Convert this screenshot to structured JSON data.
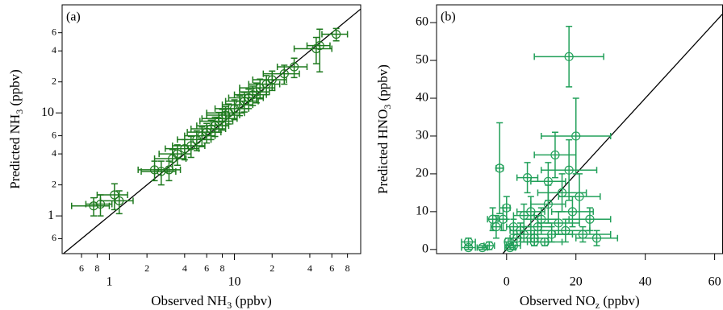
{
  "chart_data": [
    {
      "type": "scatter",
      "panel_label": "(a)",
      "x_label": [
        "Observed NH",
        "3",
        " (ppbv)"
      ],
      "y_label": [
        "Predicted NH",
        "3",
        " (ppbv)"
      ],
      "xscale": "log",
      "yscale": "log",
      "color": "#1f7a1f",
      "identity_line": true,
      "xlim": [
        0.42,
        102
      ],
      "ylim": [
        0.43,
        112
      ],
      "xticks": [
        {
          "value": 0.6,
          "label": "6"
        },
        {
          "value": 0.8,
          "label": "8"
        },
        1,
        {
          "value": 2,
          "label": "2"
        },
        {
          "value": 4,
          "label": "4"
        },
        6,
        8,
        10,
        {
          "value": 20,
          "label": "2"
        },
        {
          "value": 40,
          "label": "4"
        },
        {
          "value": 60,
          "label": "6"
        },
        {
          "value": 80,
          "label": "8"
        }
      ],
      "yticks": [
        {
          "value": 0.6,
          "label": "6"
        },
        1,
        2,
        4,
        6,
        10,
        {
          "value": 20,
          "label": "2"
        },
        {
          "value": 40,
          "label": "4"
        },
        {
          "value": 60,
          "label": "6"
        }
      ],
      "x": [
        0.75,
        0.85,
        1.1,
        1.2,
        2.3,
        2.6,
        3.0,
        3.2,
        3.5,
        4.0,
        4.5,
        5,
        5.5,
        6,
        6.5,
        7,
        7.5,
        8,
        8.5,
        9,
        10,
        11,
        12,
        13,
        14,
        15,
        16,
        18,
        20,
        25,
        30,
        45,
        48,
        65
      ],
      "values": [
        1.25,
        1.3,
        1.6,
        1.4,
        2.8,
        2.7,
        2.8,
        3.6,
        4.0,
        4.5,
        4.8,
        5.5,
        6,
        6.5,
        7,
        7.5,
        8.3,
        8.8,
        9.5,
        10,
        11,
        12,
        13,
        14,
        15,
        16,
        17.5,
        19,
        21,
        24,
        28,
        42,
        45,
        58
      ],
      "x_err": [
        0.25,
        0.2,
        0.3,
        0.35,
        0.6,
        0.8,
        0.7,
        0.9,
        1,
        1.2,
        1.3,
        1.5,
        1.5,
        1.8,
        2,
        2,
        2.2,
        2.5,
        2.5,
        3,
        3,
        3,
        3.5,
        4,
        4,
        4,
        5,
        5,
        6,
        8,
        8,
        15,
        10,
        15
      ],
      "y_err": [
        0.25,
        0.3,
        0.45,
        0.35,
        0.6,
        0.7,
        0.6,
        0.8,
        0.9,
        1,
        1.1,
        1.2,
        1.3,
        1.4,
        1.5,
        1.6,
        1.8,
        2,
        2,
        2.2,
        2.4,
        2.6,
        2.8,
        3,
        3.2,
        3.5,
        3.8,
        4,
        4.5,
        5,
        6,
        12,
        20,
        8
      ]
    },
    {
      "type": "scatter",
      "panel_label": "(b)",
      "x_label": [
        "Observed NO",
        "z",
        " (ppbv)"
      ],
      "y_label": [
        "Predicted HNO",
        "3",
        " (ppbv)"
      ],
      "xscale": "linear",
      "yscale": "linear",
      "color": "#22a05a",
      "identity_line": true,
      "xlim": [
        -20.2,
        62.3
      ],
      "ylim": [
        -1.1,
        64.7
      ],
      "xticks": [
        0,
        20,
        40,
        60
      ],
      "yticks": [
        0,
        10,
        20,
        30,
        40,
        50,
        60
      ],
      "x": [
        -11,
        -11,
        -7,
        -5,
        -2,
        -1,
        0,
        0.5,
        1,
        2,
        3,
        4,
        5,
        6,
        7,
        8,
        9,
        10,
        11,
        12,
        13,
        14,
        15,
        16,
        17,
        18,
        19,
        20,
        21,
        22,
        24,
        26,
        -4,
        -3,
        2,
        5,
        8,
        12,
        18
      ],
      "values": [
        0.5,
        2,
        0.5,
        1,
        21.5,
        8,
        11,
        2,
        0.5,
        1,
        3,
        5,
        4,
        19,
        10,
        3,
        6,
        8,
        2,
        12,
        4,
        25,
        7,
        15,
        5,
        51,
        10,
        30,
        14,
        4,
        8,
        3,
        8,
        6,
        6,
        9,
        2,
        18,
        21
      ],
      "x_err": [
        2,
        2,
        1.5,
        1.5,
        1,
        1,
        1,
        1,
        1.5,
        2,
        2,
        3,
        3,
        3,
        4,
        4,
        4,
        5,
        5,
        5,
        6,
        6,
        6,
        7,
        7,
        10,
        6,
        10,
        6,
        8,
        6,
        6,
        1.5,
        1.5,
        2,
        3,
        4,
        5,
        8
      ],
      "y_err": [
        0.5,
        1,
        0.5,
        1,
        12,
        3,
        3,
        1,
        0.5,
        1,
        2,
        2,
        2,
        4,
        4,
        2,
        3,
        3,
        1,
        5,
        2,
        6,
        3,
        5,
        3,
        8,
        4,
        10,
        6,
        2,
        3,
        2,
        3,
        3,
        2,
        3,
        1,
        5,
        8
      ]
    }
  ]
}
